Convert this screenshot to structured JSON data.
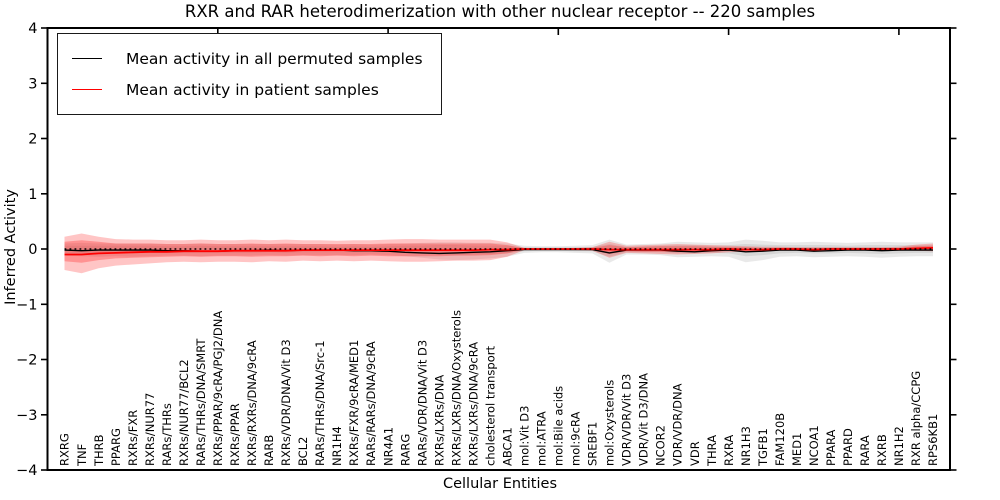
{
  "chart_data": {
    "type": "line",
    "title": "RXR and RAR heterodimerization with other nuclear receptor -- 220 samples",
    "xlabel": "Cellular Entities",
    "ylabel": "Inferred Activity",
    "ylim": [
      -4,
      4
    ],
    "yticks": [
      -4,
      -3,
      -2,
      -1,
      0,
      1,
      2,
      3,
      4
    ],
    "xlim": [
      0,
      53
    ],
    "xticks": [
      10,
      20,
      30,
      40,
      50
    ],
    "grid": false,
    "legend_position": "upper left",
    "categories": [
      "RXRG",
      "TNF",
      "THRB",
      "PPARG",
      "RXRs/FXR",
      "RXRs/NUR77",
      "RARs/THRs",
      "RXRs/NUR77/BCL2",
      "RARs/THRs/DNA/SMRT",
      "RXRs/PPAR/9cRA/PGJ2/DNA",
      "RXRs/PPAR",
      "RXRs/RXRs/DNA/9cRA",
      "RARB",
      "RXRs/VDR/DNA/Vit D3",
      "BCL2",
      "RARs/THRs/DNA/Src-1",
      "NR1H4",
      "RXRs/FXR/9cRA/MED1",
      "RARs/RARs/DNA/9cRA",
      "NR4A1",
      "RARG",
      "RARs/VDR/DNA/Vit D3",
      "RXRs/LXRs/DNA",
      "RXRs/LXRs/DNA/Oxysterols",
      "RXRs/LXRs/DNA/9cRA",
      "cholesterol transport",
      "ABCA1",
      "mol:Vit D3",
      "mol:ATRA",
      "mol:Bile acids",
      "mol:9cRA",
      "SREBF1",
      "mol:Oxysterols",
      "VDR/VDR/Vit D3",
      "VDR/Vit D3/DNA",
      "NCOR2",
      "VDR/VDR/DNA",
      "VDR",
      "THRA",
      "RXRA",
      "NR1H3",
      "TGFB1",
      "FAM120B",
      "MED1",
      "NCOA1",
      "PPARA",
      "PPARD",
      "RARA",
      "RXRB",
      "NR1H2",
      "RXR alpha/CCPG",
      "RPS6KB1"
    ],
    "series": [
      {
        "name": "Mean activity in all permuted samples",
        "color": "#000000",
        "width": 1.4,
        "values": [
          -0.02,
          -0.03,
          -0.02,
          -0.02,
          -0.02,
          -0.02,
          -0.03,
          -0.03,
          -0.04,
          -0.04,
          -0.03,
          -0.03,
          -0.02,
          -0.03,
          -0.02,
          -0.02,
          -0.02,
          -0.03,
          -0.03,
          -0.04,
          -0.06,
          -0.07,
          -0.08,
          -0.07,
          -0.06,
          -0.05,
          -0.03,
          -0.01,
          -0.01,
          -0.01,
          -0.01,
          -0.01,
          -0.07,
          -0.02,
          -0.02,
          -0.02,
          -0.04,
          -0.05,
          -0.03,
          -0.02,
          -0.05,
          -0.04,
          -0.02,
          -0.02,
          -0.04,
          -0.03,
          -0.02,
          -0.02,
          -0.03,
          -0.02,
          -0.02,
          -0.02
        ]
      },
      {
        "name": "Mean activity in patient samples",
        "color": "#ff0000",
        "width": 1.8,
        "values": [
          -0.1,
          -0.1,
          -0.08,
          -0.07,
          -0.06,
          -0.05,
          -0.05,
          -0.04,
          -0.04,
          -0.04,
          -0.03,
          -0.03,
          -0.03,
          -0.03,
          -0.02,
          -0.02,
          -0.02,
          -0.02,
          -0.02,
          -0.02,
          -0.02,
          -0.02,
          -0.02,
          -0.02,
          -0.02,
          -0.01,
          -0.01,
          0,
          0,
          0,
          0,
          0,
          -0.01,
          -0.01,
          -0.01,
          -0.01,
          -0.01,
          -0.01,
          -0.01,
          0,
          -0.01,
          -0.01,
          0,
          0,
          -0.01,
          0,
          0,
          0,
          0,
          0,
          0.01,
          0.02
        ]
      }
    ],
    "bands": [
      {
        "name": "permuted-samples-std-outer",
        "color": "rgba(120,120,120,0.16)",
        "hi": [
          0.1,
          0.11,
          0.1,
          0.1,
          0.1,
          0.1,
          0.09,
          0.09,
          0.1,
          0.09,
          0.09,
          0.09,
          0.09,
          0.09,
          0.09,
          0.09,
          0.08,
          0.09,
          0.08,
          0.09,
          0.1,
          0.11,
          0.12,
          0.12,
          0.11,
          0.11,
          0.1,
          0.06,
          0.05,
          0.05,
          0.06,
          0.07,
          0.17,
          0.08,
          0.09,
          0.1,
          0.13,
          0.12,
          0.11,
          0.12,
          0.17,
          0.15,
          0.12,
          0.12,
          0.13,
          0.12,
          0.11,
          0.12,
          0.13,
          0.12,
          0.12,
          0.12
        ],
        "lo": [
          -0.12,
          -0.13,
          -0.14,
          -0.13,
          -0.14,
          -0.13,
          -0.12,
          -0.12,
          -0.13,
          -0.12,
          -0.12,
          -0.12,
          -0.11,
          -0.12,
          -0.11,
          -0.11,
          -0.11,
          -0.11,
          -0.1,
          -0.11,
          -0.13,
          -0.16,
          -0.19,
          -0.2,
          -0.19,
          -0.17,
          -0.14,
          -0.07,
          -0.06,
          -0.06,
          -0.07,
          -0.08,
          -0.25,
          -0.1,
          -0.1,
          -0.11,
          -0.15,
          -0.14,
          -0.13,
          -0.14,
          -0.24,
          -0.2,
          -0.14,
          -0.13,
          -0.15,
          -0.14,
          -0.13,
          -0.14,
          -0.16,
          -0.14,
          -0.13,
          -0.13
        ]
      },
      {
        "name": "permuted-samples-std-inner",
        "color": "rgba(120,120,120,0.16)",
        "hi": [
          0.06,
          0.06,
          0.06,
          0.06,
          0.06,
          0.06,
          0.05,
          0.05,
          0.06,
          0.05,
          0.05,
          0.05,
          0.05,
          0.05,
          0.05,
          0.05,
          0.04,
          0.05,
          0.04,
          0.05,
          0.06,
          0.06,
          0.07,
          0.07,
          0.06,
          0.06,
          0.06,
          0.03,
          0.03,
          0.03,
          0.03,
          0.04,
          0.09,
          0.04,
          0.05,
          0.06,
          0.07,
          0.07,
          0.06,
          0.07,
          0.09,
          0.08,
          0.07,
          0.07,
          0.07,
          0.07,
          0.06,
          0.07,
          0.07,
          0.07,
          0.07,
          0.07
        ],
        "lo": [
          -0.07,
          -0.07,
          -0.08,
          -0.07,
          -0.08,
          -0.07,
          -0.07,
          -0.07,
          -0.07,
          -0.07,
          -0.07,
          -0.07,
          -0.06,
          -0.07,
          -0.06,
          -0.06,
          -0.06,
          -0.06,
          -0.06,
          -0.06,
          -0.07,
          -0.09,
          -0.1,
          -0.11,
          -0.1,
          -0.09,
          -0.08,
          -0.04,
          -0.03,
          -0.03,
          -0.04,
          -0.04,
          -0.14,
          -0.06,
          -0.06,
          -0.06,
          -0.08,
          -0.08,
          -0.07,
          -0.08,
          -0.13,
          -0.11,
          -0.08,
          -0.07,
          -0.08,
          -0.08,
          -0.07,
          -0.08,
          -0.09,
          -0.08,
          -0.07,
          -0.07
        ]
      },
      {
        "name": "patient-samples-std-outer",
        "color": "rgba(255,30,30,0.26)",
        "hi": [
          0.22,
          0.28,
          0.22,
          0.18,
          0.17,
          0.17,
          0.16,
          0.16,
          0.17,
          0.16,
          0.16,
          0.17,
          0.16,
          0.17,
          0.16,
          0.16,
          0.15,
          0.16,
          0.16,
          0.17,
          0.18,
          0.18,
          0.17,
          0.17,
          0.17,
          0.17,
          0.12,
          0.02,
          0.015,
          0.015,
          0.02,
          0.03,
          0.13,
          0.06,
          0.07,
          0.08,
          0.09,
          0.08,
          0.07,
          0.06,
          0.05,
          0.04,
          0.04,
          0.03,
          0.03,
          0.03,
          0.03,
          0.03,
          0.03,
          0.04,
          0.08,
          0.1
        ],
        "lo": [
          -0.38,
          -0.44,
          -0.35,
          -0.3,
          -0.28,
          -0.26,
          -0.24,
          -0.23,
          -0.24,
          -0.23,
          -0.23,
          -0.24,
          -0.22,
          -0.23,
          -0.21,
          -0.22,
          -0.21,
          -0.22,
          -0.21,
          -0.22,
          -0.23,
          -0.23,
          -0.22,
          -0.21,
          -0.21,
          -0.2,
          -0.14,
          -0.02,
          -0.015,
          -0.015,
          -0.02,
          -0.03,
          -0.16,
          -0.07,
          -0.08,
          -0.09,
          -0.1,
          -0.09,
          -0.08,
          -0.06,
          -0.05,
          -0.04,
          -0.03,
          -0.03,
          -0.03,
          -0.03,
          -0.02,
          -0.02,
          -0.03,
          -0.03,
          -0.02,
          -0.02
        ]
      },
      {
        "name": "patient-samples-std-inner",
        "color": "rgba(255,30,30,0.30)",
        "hi": [
          0.13,
          0.16,
          0.13,
          0.1,
          0.1,
          0.1,
          0.09,
          0.09,
          0.1,
          0.09,
          0.09,
          0.1,
          0.09,
          0.1,
          0.09,
          0.09,
          0.09,
          0.09,
          0.09,
          0.1,
          0.1,
          0.1,
          0.1,
          0.1,
          0.1,
          0.1,
          0.07,
          0.01,
          0.01,
          0.01,
          0.01,
          0.02,
          0.07,
          0.03,
          0.04,
          0.05,
          0.05,
          0.05,
          0.04,
          0.03,
          0.03,
          0.02,
          0.02,
          0.02,
          0.02,
          0.02,
          0.02,
          0.02,
          0.02,
          0.02,
          0.05,
          0.06
        ],
        "lo": [
          -0.22,
          -0.25,
          -0.2,
          -0.17,
          -0.16,
          -0.15,
          -0.14,
          -0.13,
          -0.14,
          -0.13,
          -0.13,
          -0.14,
          -0.13,
          -0.13,
          -0.12,
          -0.13,
          -0.12,
          -0.13,
          -0.12,
          -0.13,
          -0.13,
          -0.13,
          -0.13,
          -0.12,
          -0.12,
          -0.11,
          -0.08,
          -0.01,
          -0.01,
          -0.01,
          -0.01,
          -0.02,
          -0.09,
          -0.04,
          -0.05,
          -0.05,
          -0.06,
          -0.05,
          -0.05,
          -0.03,
          -0.03,
          -0.02,
          -0.02,
          -0.02,
          -0.02,
          -0.02,
          -0.01,
          -0.01,
          -0.02,
          -0.02,
          -0.03,
          -0.04
        ]
      }
    ],
    "zero_line": {
      "value": 0,
      "style": "dotted",
      "color": "#000000"
    },
    "legend": [
      {
        "label": "Mean activity in all permuted samples",
        "color": "#000000"
      },
      {
        "label": "Mean activity in patient samples",
        "color": "#ff0000"
      }
    ]
  }
}
